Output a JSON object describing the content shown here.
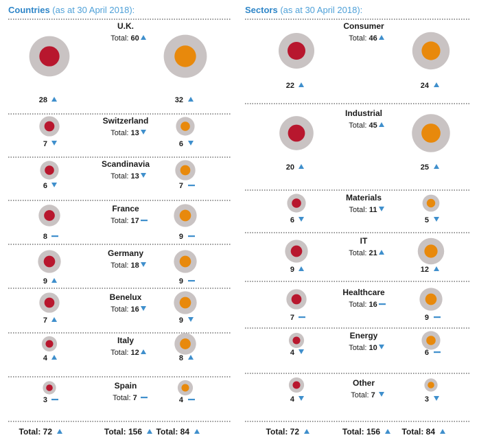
{
  "chart_data": {
    "type": "bubble-comparison",
    "series_colors": {
      "red": "#b8172e",
      "orange": "#e8890c",
      "halo": "#c9c3c3"
    },
    "indicator_colors": {
      "up": "#3f8fcc",
      "down": "#3f8fcc",
      "flat": "#3f8fcc"
    },
    "countries": {
      "title": "Countries",
      "subtitle": "(as at 30 April 2018):",
      "rows": [
        {
          "name": "U.K.",
          "total_label": "Total:",
          "total": 60,
          "total_trend": "up",
          "red": 28,
          "red_trend": "up",
          "orange": 32,
          "orange_trend": "up"
        },
        {
          "name": "Switzerland",
          "total_label": "Total:",
          "total": 13,
          "total_trend": "down",
          "red": 7,
          "red_trend": "down",
          "orange": 6,
          "orange_trend": "down"
        },
        {
          "name": "Scandinavia",
          "total_label": "Total:",
          "total": 13,
          "total_trend": "down",
          "red": 6,
          "red_trend": "down",
          "orange": 7,
          "orange_trend": "flat"
        },
        {
          "name": "France",
          "total_label": "Total:",
          "total": 17,
          "total_trend": "flat",
          "red": 8,
          "red_trend": "flat",
          "orange": 9,
          "orange_trend": "flat"
        },
        {
          "name": "Germany",
          "total_label": "Total:",
          "total": 18,
          "total_trend": "down",
          "red": 9,
          "red_trend": "up",
          "orange": 9,
          "orange_trend": "flat"
        },
        {
          "name": "Benelux",
          "total_label": "Total:",
          "total": 16,
          "total_trend": "down",
          "red": 7,
          "red_trend": "up",
          "orange": 9,
          "orange_trend": "down"
        },
        {
          "name": "Italy",
          "total_label": "Total:",
          "total": 12,
          "total_trend": "up",
          "red": 4,
          "red_trend": "up",
          "orange": 8,
          "orange_trend": "up"
        },
        {
          "name": "Spain",
          "total_label": "Total:",
          "total": 7,
          "total_trend": "flat",
          "red": 3,
          "red_trend": "flat",
          "orange": 4,
          "orange_trend": "flat"
        }
      ]
    },
    "sectors": {
      "title": "Sectors",
      "subtitle": "(as at 30 April 2018):",
      "rows": [
        {
          "name": "Consumer",
          "total_label": "Total:",
          "total": 46,
          "total_trend": "up",
          "red": 22,
          "red_trend": "up",
          "orange": 24,
          "orange_trend": "up"
        },
        {
          "name": "Industrial",
          "total_label": "Total:",
          "total": 45,
          "total_trend": "up",
          "red": 20,
          "red_trend": "up",
          "orange": 25,
          "orange_trend": "up"
        },
        {
          "name": "Materials",
          "total_label": "Total:",
          "total": 11,
          "total_trend": "down",
          "red": 6,
          "red_trend": "down",
          "orange": 5,
          "orange_trend": "down"
        },
        {
          "name": "IT",
          "total_label": "Total:",
          "total": 21,
          "total_trend": "up",
          "red": 9,
          "red_trend": "up",
          "orange": 12,
          "orange_trend": "up"
        },
        {
          "name": "Healthcare",
          "total_label": "Total:",
          "total": 16,
          "total_trend": "flat",
          "red": 7,
          "red_trend": "flat",
          "orange": 9,
          "orange_trend": "flat"
        },
        {
          "name": "Energy",
          "total_label": "Total:",
          "total": 10,
          "total_trend": "down",
          "red": 4,
          "red_trend": "down",
          "orange": 6,
          "orange_trend": "flat"
        },
        {
          "name": "Other",
          "total_label": "Total:",
          "total": 7,
          "total_trend": "down",
          "red": 4,
          "red_trend": "down",
          "orange": 3,
          "orange_trend": "down"
        }
      ]
    },
    "footer": {
      "countries": {
        "red_label": "Total: 72",
        "red_trend": "up",
        "total_label": "Total: 156",
        "total_trend": "up",
        "orange_label": "Total: 84",
        "orange_trend": "up"
      },
      "sectors": {
        "red_label": "Total: 72",
        "red_trend": "up",
        "total_label": "Total: 156",
        "total_trend": "up",
        "orange_label": "Total: 84",
        "orange_trend": "up"
      }
    }
  }
}
